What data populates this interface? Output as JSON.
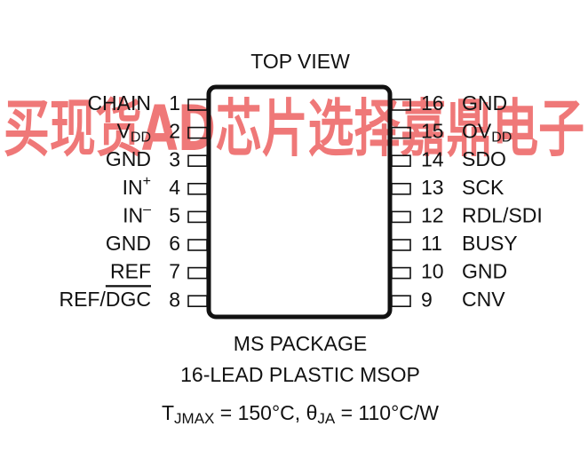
{
  "watermark": "买现货AD芯片选择嘉鼎电子",
  "title": "TOP VIEW",
  "left_pins": [
    {
      "number": "1",
      "name": "CHAIN"
    },
    {
      "number": "2",
      "name": "V",
      "sub": "DD"
    },
    {
      "number": "3",
      "name": "GND"
    },
    {
      "number": "4",
      "name": "IN",
      "sup": "+"
    },
    {
      "number": "5",
      "name": "IN",
      "sup": "–"
    },
    {
      "number": "6",
      "name": "GND"
    },
    {
      "number": "7",
      "name": "REF"
    },
    {
      "number": "8",
      "name": "REF/",
      "overline": "DGC"
    }
  ],
  "right_pins": [
    {
      "number": "16",
      "name": "GND"
    },
    {
      "number": "15",
      "name": "OV",
      "sub": "DD"
    },
    {
      "number": "14",
      "name": "SDO"
    },
    {
      "number": "13",
      "name": "SCK"
    },
    {
      "number": "12",
      "name": "RDL/SDI"
    },
    {
      "number": "11",
      "name": "BUSY"
    },
    {
      "number": "10",
      "name": "GND"
    },
    {
      "number": "9",
      "name": "CNV"
    }
  ],
  "package": {
    "line1": "MS PACKAGE",
    "line2": "16-LEAD PLASTIC MSOP"
  },
  "thermal": [
    "T",
    "JMAX",
    " = 150°C, θ",
    "JA",
    " = 110°C/W"
  ]
}
